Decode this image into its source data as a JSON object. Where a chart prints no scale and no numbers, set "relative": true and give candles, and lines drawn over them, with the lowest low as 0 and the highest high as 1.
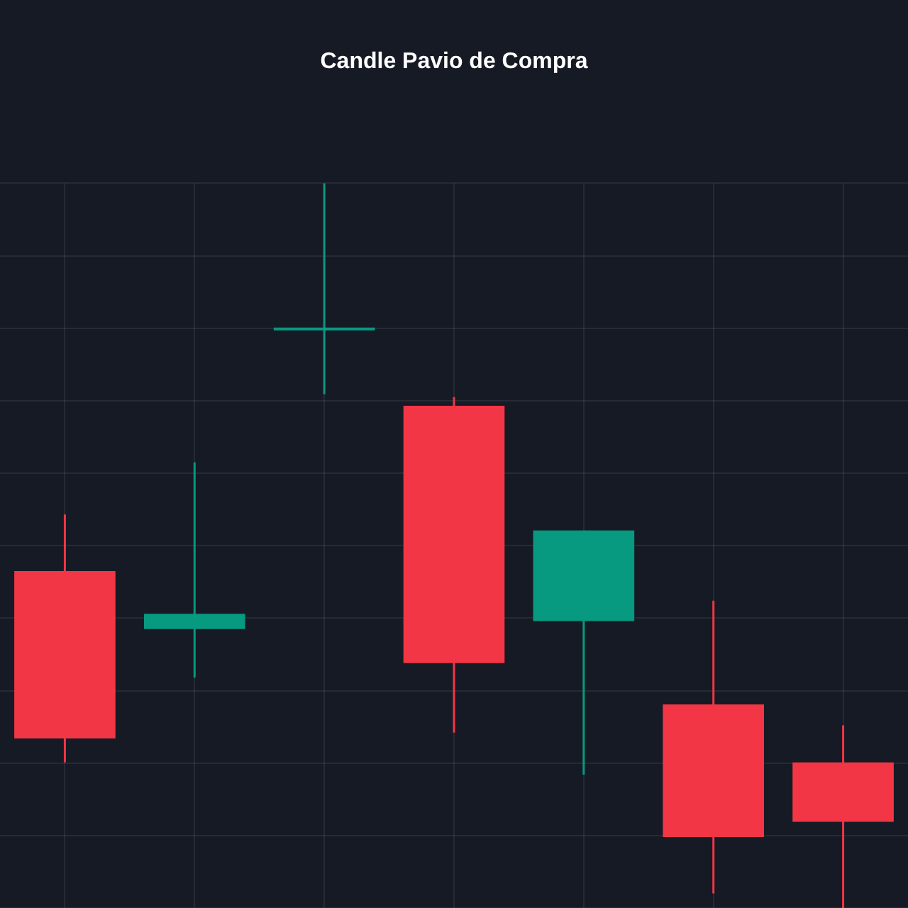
{
  "chart_data": {
    "type": "candlestick",
    "title": "Candle Pavio de Compra",
    "relative": true,
    "grid": true,
    "categories": [
      null,
      null,
      null,
      null,
      null,
      null,
      null
    ],
    "ohlc": [
      [
        0.465,
        0.543,
        0.201,
        0.234
      ],
      [
        0.385,
        0.615,
        0.318,
        0.406
      ],
      [
        0.799,
        1,
        0.709,
        0.799
      ],
      [
        0.693,
        0.705,
        0.242,
        0.338
      ],
      [
        0.396,
        0.521,
        0.184,
        0.521
      ],
      [
        0.281,
        0.424,
        0.02,
        0.098
      ],
      [
        0.201,
        0.252,
        0,
        0.119
      ]
    ],
    "colors": [
      "#f23645",
      "#089981",
      "#089981",
      "#f23645",
      "#089981",
      "#f23645",
      "#f23645"
    ]
  }
}
